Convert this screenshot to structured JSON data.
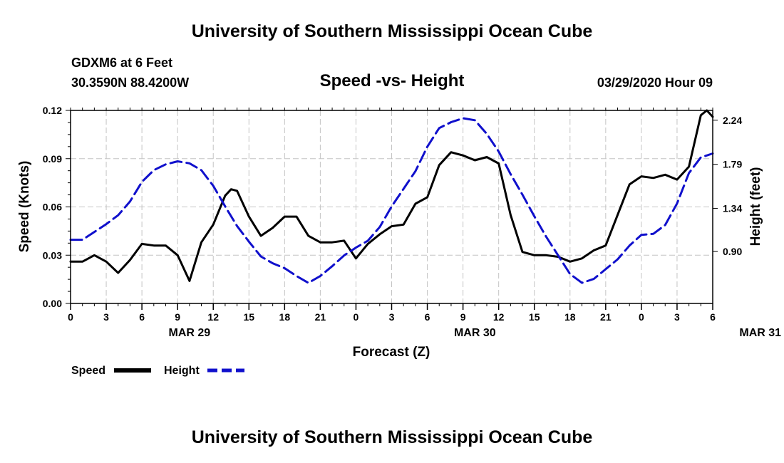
{
  "header": {
    "title": "University of Southern Mississippi Ocean Cube",
    "station": "GDXM6 at 6 Feet",
    "coords": "30.3590N 88.4200W",
    "datetime": "03/29/2020 Hour 09"
  },
  "footer": {
    "title": "University of Southern Mississippi Ocean Cube"
  },
  "chart_data": {
    "type": "line",
    "title": "Speed -vs- Height",
    "xlabel": "Forecast (Z)",
    "ylabel": "Speed (Knots)",
    "y2label": "Height (feet)",
    "x_ticks": [
      "0",
      "3",
      "6",
      "9",
      "12",
      "15",
      "18",
      "21",
      "0",
      "3",
      "6",
      "9",
      "12",
      "15",
      "18",
      "21",
      "0",
      "3",
      "6"
    ],
    "date_labels": [
      {
        "label": "MAR 29",
        "hour": 10
      },
      {
        "label": "MAR 30",
        "hour": 34
      },
      {
        "label": "MAR 31",
        "hour": 58
      }
    ],
    "xlim": [
      0,
      54
    ],
    "ylim": [
      0,
      0.12
    ],
    "y_ticks": [
      "0.00",
      "0.03",
      "0.06",
      "0.09",
      "0.12"
    ],
    "y2lim": [
      0.37,
      2.34
    ],
    "y2_ticks": [
      "0.90",
      "1.34",
      "1.79",
      "2.24"
    ],
    "grid": true,
    "legend": [
      {
        "label": "Speed",
        "color": "#000000"
      },
      {
        "label": "Height",
        "color": "#1010cc"
      }
    ],
    "series": [
      {
        "name": "Speed",
        "axis": "left",
        "color": "#000000",
        "x": [
          0,
          1,
          2,
          3,
          4,
          5,
          6,
          7,
          8,
          9,
          10,
          11,
          12,
          13,
          13.5,
          14,
          15,
          16,
          17,
          18,
          19,
          20,
          21,
          22,
          23,
          24,
          25,
          26,
          27,
          28,
          29,
          30,
          31,
          32,
          33,
          34,
          35,
          36,
          37,
          38,
          39,
          40,
          41,
          42,
          43,
          44,
          45,
          46,
          47,
          48,
          49,
          50,
          51,
          52,
          53,
          53.5,
          54
        ],
        "values": [
          0.026,
          0.026,
          0.03,
          0.026,
          0.019,
          0.027,
          0.037,
          0.036,
          0.036,
          0.03,
          0.014,
          0.038,
          0.049,
          0.067,
          0.071,
          0.07,
          0.054,
          0.042,
          0.047,
          0.054,
          0.054,
          0.042,
          0.038,
          0.038,
          0.039,
          0.028,
          0.037,
          0.043,
          0.048,
          0.049,
          0.062,
          0.066,
          0.086,
          0.094,
          0.092,
          0.089,
          0.091,
          0.087,
          0.055,
          0.032,
          0.03,
          0.03,
          0.029,
          0.026,
          0.028,
          0.033,
          0.036,
          0.055,
          0.074,
          0.079,
          0.078,
          0.08,
          0.077,
          0.085,
          0.117,
          0.12,
          0.116
        ]
      },
      {
        "name": "Height",
        "axis": "right",
        "color": "#1010cc",
        "x": [
          0,
          1,
          2,
          3,
          4,
          5,
          6,
          7,
          8,
          9,
          10,
          11,
          12,
          13,
          14,
          15,
          16,
          17,
          18,
          19,
          20,
          21,
          22,
          23,
          24,
          25,
          26,
          27,
          28,
          29,
          30,
          31,
          32,
          33,
          34,
          35,
          36,
          37,
          38,
          39,
          40,
          41,
          42,
          43,
          44,
          45,
          46,
          47,
          48,
          49,
          50,
          51,
          52,
          53,
          54
        ],
        "values": [
          1.02,
          1.02,
          1.1,
          1.18,
          1.27,
          1.41,
          1.61,
          1.73,
          1.79,
          1.82,
          1.8,
          1.73,
          1.57,
          1.36,
          1.16,
          1.0,
          0.85,
          0.78,
          0.73,
          0.65,
          0.58,
          0.65,
          0.75,
          0.86,
          0.94,
          1.01,
          1.15,
          1.36,
          1.54,
          1.72,
          1.97,
          2.16,
          2.22,
          2.26,
          2.24,
          2.1,
          1.92,
          1.69,
          1.48,
          1.26,
          1.05,
          0.86,
          0.67,
          0.58,
          0.62,
          0.72,
          0.82,
          0.96,
          1.07,
          1.08,
          1.17,
          1.39,
          1.7,
          1.86,
          1.9
        ]
      }
    ]
  }
}
